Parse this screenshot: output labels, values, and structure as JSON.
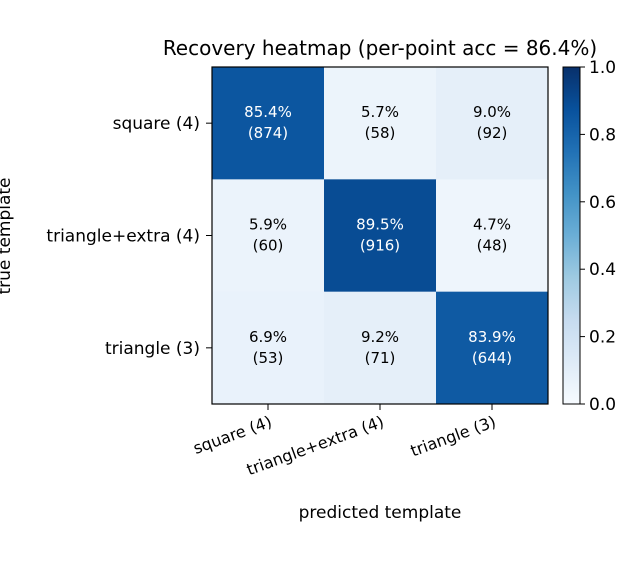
{
  "chart_data": {
    "type": "heatmap",
    "title": "Recovery heatmap  (per-point acc = 86.4%)",
    "xlabel": "predicted template",
    "ylabel": "true template",
    "x_categories": [
      "square (4)",
      "triangle+extra (4)",
      "triangle (3)"
    ],
    "y_categories": [
      "square (4)",
      "triangle+extra (4)",
      "triangle (3)"
    ],
    "values": [
      [
        0.854,
        0.057,
        0.09
      ],
      [
        0.059,
        0.895,
        0.047
      ],
      [
        0.069,
        0.092,
        0.839
      ]
    ],
    "cell_labels": [
      [
        [
          "85.4%",
          "(874)"
        ],
        [
          "5.7%",
          "(58)"
        ],
        [
          "9.0%",
          "(92)"
        ]
      ],
      [
        [
          "5.9%",
          "(60)"
        ],
        [
          "89.5%",
          "(916)"
        ],
        [
          "4.7%",
          "(48)"
        ]
      ],
      [
        [
          "6.9%",
          "(53)"
        ],
        [
          "9.2%",
          "(71)"
        ],
        [
          "83.9%",
          "(644)"
        ]
      ]
    ],
    "colorbar": {
      "range": [
        0.0,
        1.0
      ],
      "ticks": [
        {
          "value": 0.0,
          "label": "0.0"
        },
        {
          "value": 0.2,
          "label": "0.2"
        },
        {
          "value": 0.4,
          "label": "0.4"
        },
        {
          "value": 0.6,
          "label": "0.6"
        },
        {
          "value": 0.8,
          "label": "0.8"
        },
        {
          "value": 1.0,
          "label": "1.0"
        }
      ]
    },
    "colormap": "Blues"
  }
}
